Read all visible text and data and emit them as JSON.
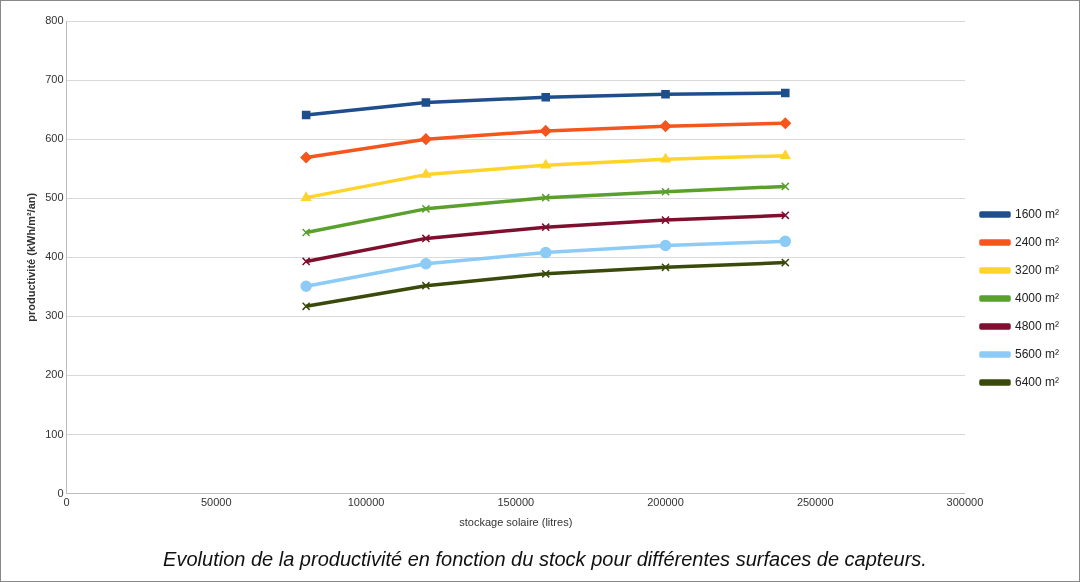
{
  "chart_data": {
    "type": "line",
    "title": "Evolution de la productivité en fonction du stock pour différentes surfaces de capteurs.",
    "xlabel": "stockage solaire (litres)",
    "ylabel": "productivité (kWh/m²/an)",
    "x": [
      80000,
      120000,
      160000,
      200000,
      240000
    ],
    "series": [
      {
        "name": "1600 m²",
        "color": "#1f4e8c",
        "marker": "square",
        "values": [
          641,
          662,
          671,
          676,
          678
        ]
      },
      {
        "name": "2400 m²",
        "color": "#f4561d",
        "marker": "diamond",
        "values": [
          569,
          600,
          614,
          622,
          627
        ]
      },
      {
        "name": "3200 m²",
        "color": "#ffd42a",
        "marker": "triangle",
        "values": [
          501,
          540,
          556,
          566,
          572
        ]
      },
      {
        "name": "4000 m²",
        "color": "#5aa02c",
        "marker": "cross",
        "values": [
          442,
          482,
          501,
          511,
          520
        ]
      },
      {
        "name": "4800 m²",
        "color": "#7f0f2f",
        "marker": "cross",
        "values": [
          393,
          432,
          451,
          463,
          471
        ]
      },
      {
        "name": "5600 m²",
        "color": "#8ccbf5",
        "marker": "circle",
        "values": [
          351,
          389,
          408,
          420,
          427
        ]
      },
      {
        "name": "6400 m²",
        "color": "#3a4a0a",
        "marker": "cross",
        "values": [
          317,
          352,
          372,
          383,
          391
        ]
      }
    ],
    "xlim": [
      0,
      300000
    ],
    "xticks": [
      0,
      50000,
      100000,
      150000,
      200000,
      250000,
      300000
    ],
    "ylim": [
      0,
      800
    ],
    "yticks": [
      0,
      100,
      200,
      300,
      400,
      500,
      600,
      700,
      800
    ],
    "grid": "y",
    "legend": "right",
    "line_style": "solid"
  }
}
